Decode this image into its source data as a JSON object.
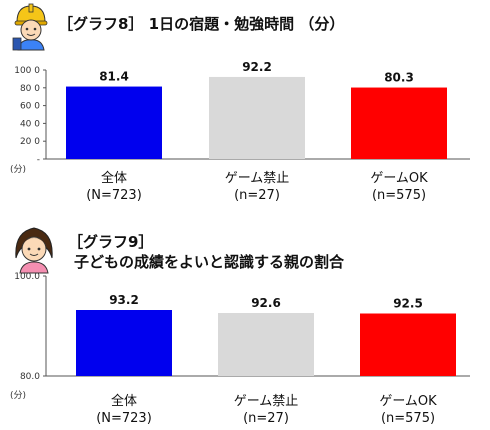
{
  "chart_data": [
    {
      "type": "bar",
      "title": "［グラフ8］ 1日の宿題・勉強時間 （分）",
      "unit_label": "(分)",
      "categories": [
        {
          "label": "全体",
          "sub": "(N=723)"
        },
        {
          "label": "ゲーム禁止",
          "sub": "(n=27)"
        },
        {
          "label": "ゲームOK",
          "sub": "(n=575)"
        }
      ],
      "values": [
        81.4,
        92.2,
        80.3
      ],
      "data_labels": [
        "81.4",
        "92.2",
        "80.3"
      ],
      "colors": [
        "#0000ee",
        "#d9d9d9",
        "#ff0000"
      ],
      "ylim": [
        0,
        100
      ],
      "yticks": [
        {
          "value": 0,
          "label": "-"
        },
        {
          "value": 20,
          "label": "20 0"
        },
        {
          "value": 40,
          "label": "40 0"
        },
        {
          "value": 60,
          "label": "60 0"
        },
        {
          "value": 80,
          "label": "80 0"
        },
        {
          "value": 100,
          "label": "100 0"
        }
      ],
      "grid": false,
      "legend": "none"
    },
    {
      "type": "bar",
      "title_line1": "［グラフ9］",
      "title_line2": "子どもの成績をよいと認識する親の割合",
      "unit_label": "(分)",
      "categories": [
        {
          "label": "全体",
          "sub": "(N=723)"
        },
        {
          "label": "ゲーム禁止",
          "sub": "(n=27)"
        },
        {
          "label": "ゲームOK",
          "sub": "(n=575)"
        }
      ],
      "values": [
        93.2,
        92.6,
        92.5
      ],
      "data_labels": [
        "93.2",
        "92.6",
        "92.5"
      ],
      "colors": [
        "#0000ee",
        "#d9d9d9",
        "#ff0000"
      ],
      "ylim": [
        80,
        100
      ],
      "yticks": [
        {
          "value": 80,
          "label": "80.0"
        },
        {
          "value": 100,
          "label": "100.0"
        }
      ],
      "grid": false,
      "legend": "none"
    }
  ]
}
